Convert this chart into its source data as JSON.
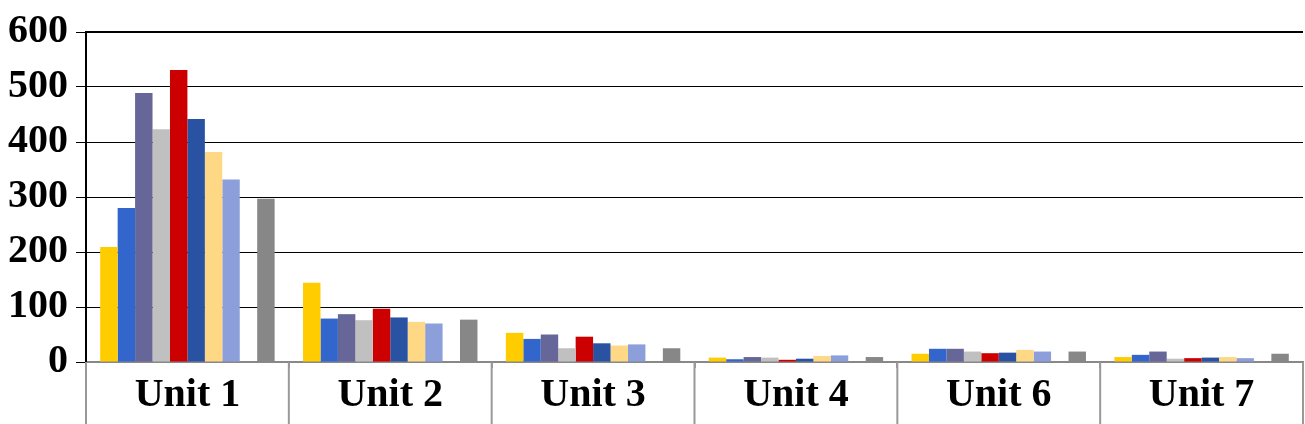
{
  "chart_data": {
    "type": "bar",
    "categories": [
      "Unit 1",
      "Unit 2",
      "Unit 3",
      "Unit 4",
      "Unit 6",
      "Unit 7"
    ],
    "series": [
      {
        "color": "#ffcc00",
        "values": [
          209,
          144,
          53,
          8,
          15,
          9
        ]
      },
      {
        "color": "#3366cc",
        "values": [
          280,
          79,
          42,
          5,
          24,
          13
        ]
      },
      {
        "color": "#666699",
        "values": [
          489,
          87,
          50,
          9,
          24,
          19
        ]
      },
      {
        "color": "#c0c0c0",
        "values": [
          423,
          76,
          25,
          8,
          19,
          6
        ]
      },
      {
        "color": "#cc0000",
        "values": [
          531,
          97,
          46,
          4,
          16,
          7
        ]
      },
      {
        "color": "#2952a3",
        "values": [
          442,
          81,
          34,
          6,
          17,
          8
        ]
      },
      {
        "color": "#ffd885",
        "values": [
          382,
          73,
          30,
          11,
          22,
          9
        ]
      },
      {
        "color": "#8c9fdb",
        "values": [
          332,
          70,
          32,
          12,
          19,
          7
        ]
      },
      {
        "values": [
          null,
          null,
          null,
          null,
          null,
          null
        ]
      },
      {
        "color": "#878787",
        "values": [
          297,
          77,
          25,
          9,
          19,
          15
        ]
      }
    ],
    "ylim": [
      0,
      600
    ],
    "yticks": [
      0,
      100,
      200,
      300,
      400,
      500,
      600
    ],
    "grid": "y",
    "legend": false
  }
}
